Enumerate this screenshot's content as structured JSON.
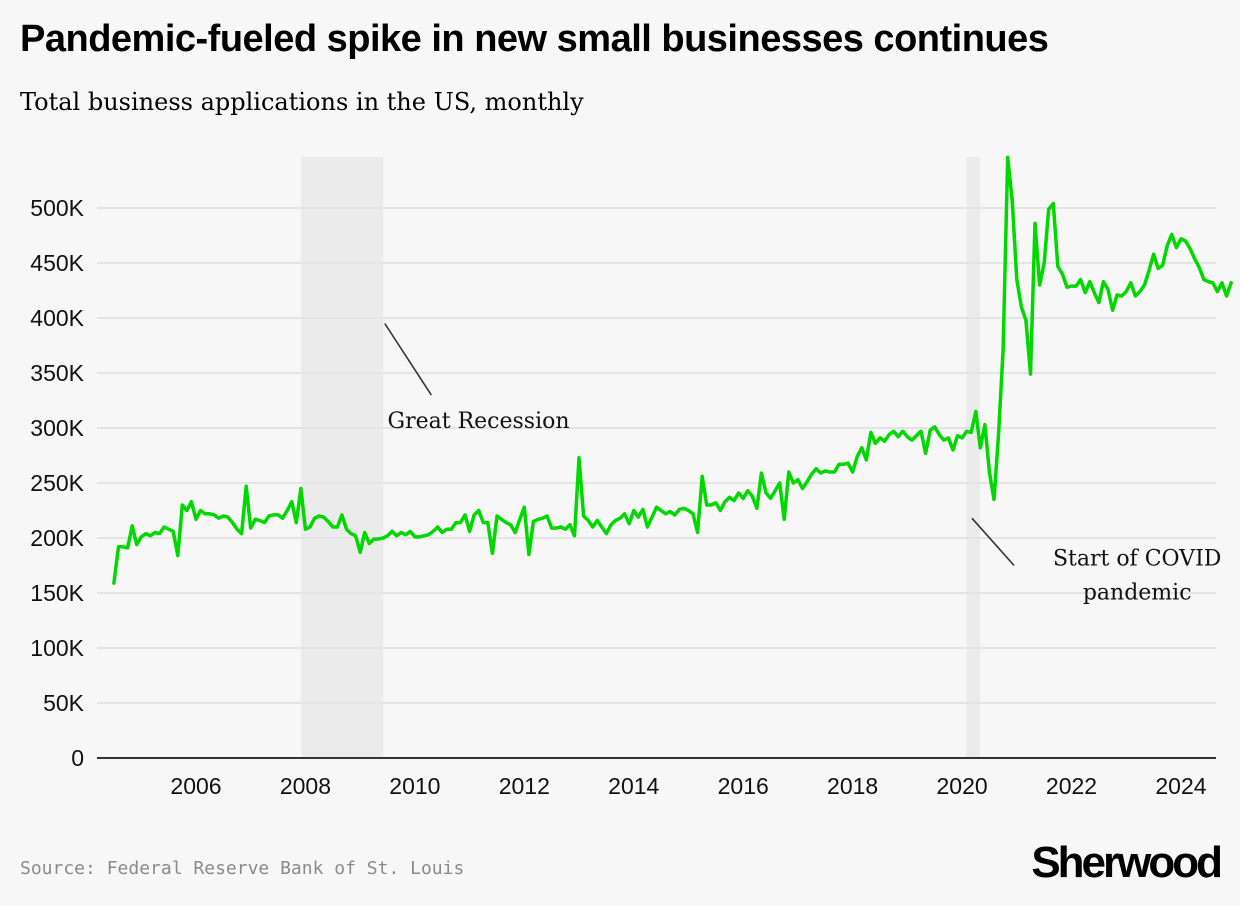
{
  "header": {
    "title": "Pandemic-fueled spike in new small businesses continues",
    "subtitle": "Total business applications in the US, monthly"
  },
  "footer": {
    "source": "Source: Federal Reserve Bank of St. Louis",
    "brand": "Sherwood"
  },
  "colors": {
    "line": "#00d800",
    "background": "#f7f7f7",
    "shading": "#ebebeb",
    "grid": "#e4e4e4",
    "axis": "#333333"
  },
  "chart_data": {
    "type": "line",
    "title": "Pandemic-fueled spike in new small businesses continues",
    "subtitle": "Total business applications in the US, monthly",
    "xlabel": "",
    "ylabel": "",
    "x_start": "2004-07",
    "x_end": "2024-08",
    "xlim": [
      2004.3,
      2024.9
    ],
    "ylim": [
      0,
      550000
    ],
    "grid": true,
    "legend": "none",
    "x_ticks": [
      {
        "value": 2006,
        "label": "2006"
      },
      {
        "value": 2008,
        "label": "2008"
      },
      {
        "value": 2010,
        "label": "2010"
      },
      {
        "value": 2012,
        "label": "2012"
      },
      {
        "value": 2014,
        "label": "2014"
      },
      {
        "value": 2016,
        "label": "2016"
      },
      {
        "value": 2018,
        "label": "2018"
      },
      {
        "value": 2020,
        "label": "2020"
      },
      {
        "value": 2022,
        "label": "2022"
      },
      {
        "value": 2024,
        "label": "2024"
      }
    ],
    "y_ticks": [
      {
        "value": 0,
        "label": "0"
      },
      {
        "value": 50000,
        "label": "50K"
      },
      {
        "value": 100000,
        "label": "100K"
      },
      {
        "value": 150000,
        "label": "150K"
      },
      {
        "value": 200000,
        "label": "200K"
      },
      {
        "value": 250000,
        "label": "250K"
      },
      {
        "value": 300000,
        "label": "300K"
      },
      {
        "value": 350000,
        "label": "350K"
      },
      {
        "value": 400000,
        "label": "400K"
      },
      {
        "value": 450000,
        "label": "450K"
      },
      {
        "value": 500000,
        "label": "500K"
      }
    ],
    "shaded_periods": [
      {
        "name": "great-recession",
        "start": 2007.92,
        "end": 2009.42
      },
      {
        "name": "covid",
        "start": 2020.08,
        "end": 2020.33
      }
    ],
    "annotations": [
      {
        "name": "great-recession",
        "lines": [
          "Great Recession"
        ],
        "anchor": "start",
        "x": 2009.5,
        "y": 300000,
        "leader_from": [
          2009.45,
          395000
        ],
        "leader_to": [
          2010.3,
          330000
        ]
      },
      {
        "name": "covid",
        "lines": [
          "Start of COVID",
          "pandemic"
        ],
        "anchor": "middle",
        "x": 2023.2,
        "y": 175000,
        "leader_from": [
          2020.18,
          218000
        ],
        "leader_to": [
          2020.95,
          175000
        ]
      }
    ],
    "series": [
      {
        "name": "Total business applications",
        "values": [
          159000,
          192000,
          192000,
          191000,
          211000,
          194000,
          201000,
          204000,
          202000,
          205000,
          204000,
          210000,
          208000,
          206000,
          184000,
          230000,
          225000,
          233000,
          217000,
          225000,
          222000,
          222000,
          221000,
          218000,
          220000,
          219000,
          214000,
          208000,
          204000,
          247000,
          209000,
          217000,
          216000,
          214000,
          220000,
          221000,
          221000,
          218000,
          225000,
          233000,
          214000,
          245000,
          208000,
          210000,
          218000,
          220000,
          219000,
          215000,
          210000,
          210000,
          221000,
          208000,
          204000,
          202000,
          187000,
          205000,
          195000,
          199000,
          199000,
          200000,
          202000,
          206000,
          202000,
          205000,
          203000,
          206000,
          201000,
          201000,
          202000,
          203000,
          206000,
          210000,
          205000,
          208000,
          208000,
          214000,
          214000,
          221000,
          206000,
          221000,
          225000,
          214000,
          214000,
          186000,
          220000,
          217000,
          214000,
          212000,
          205000,
          217000,
          228000,
          185000,
          215000,
          217000,
          218000,
          220000,
          209000,
          209000,
          210000,
          208000,
          212000,
          202000,
          273000,
          220000,
          216000,
          210000,
          216000,
          210000,
          204000,
          212000,
          216000,
          218000,
          222000,
          213000,
          225000,
          219000,
          226000,
          210000,
          219000,
          228000,
          225000,
          222000,
          224000,
          221000,
          226000,
          227000,
          225000,
          222000,
          205000,
          256000,
          230000,
          230000,
          232000,
          225000,
          233000,
          237000,
          234000,
          241000,
          236000,
          243000,
          238000,
          227000,
          259000,
          241000,
          236000,
          243000,
          250000,
          217000,
          260000,
          250000,
          253000,
          245000,
          251000,
          258000,
          263000,
          259000,
          261000,
          260000,
          260000,
          267000,
          267000,
          268000,
          260000,
          274000,
          282000,
          271000,
          296000,
          286000,
          291000,
          288000,
          294000,
          297000,
          292000,
          297000,
          292000,
          289000,
          293000,
          297000,
          277000,
          298000,
          301000,
          294000,
          289000,
          291000,
          280000,
          293000,
          291000,
          297000,
          296000,
          315000,
          282000,
          303000,
          260000,
          235000,
          295000,
          371000,
          546000,
          507000,
          435000,
          410000,
          398000,
          349000,
          486000,
          430000,
          450000,
          499000,
          504000,
          447000,
          440000,
          428000,
          429000,
          429000,
          435000,
          423000,
          433000,
          423000,
          414000,
          433000,
          426000,
          407000,
          421000,
          420000,
          424000,
          432000,
          420000,
          424000,
          430000,
          443000,
          458000,
          445000,
          448000,
          466000,
          476000,
          464000,
          472000,
          470000,
          463000,
          454000,
          446000,
          435000,
          433000,
          432000,
          424000,
          432000,
          420000,
          432000
        ]
      }
    ]
  }
}
